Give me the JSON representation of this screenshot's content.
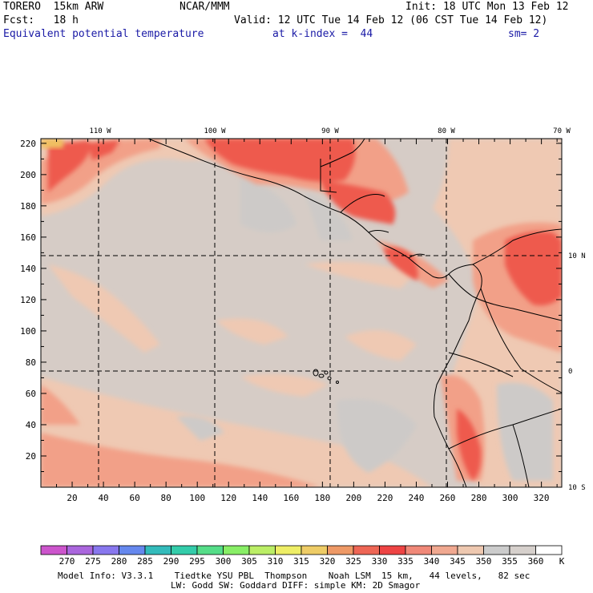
{
  "header": {
    "model": "TORERO  15km ARW",
    "center": "NCAR/MMM",
    "init": "Init: 18 UTC Mon 13 Feb 12",
    "fcst": "Fcst:   18 h",
    "valid": "Valid: 12 UTC Tue 14 Feb 12 (06 CST Tue 14 Feb 12)",
    "field": "Equivalent potential temperature",
    "level": "at k-index =  44",
    "smooth": "sm= 2"
  },
  "map": {
    "x_ticks": [
      "20",
      "40",
      "60",
      "80",
      "100",
      "120",
      "140",
      "160",
      "180",
      "200",
      "220",
      "240",
      "260",
      "280",
      "300",
      "320"
    ],
    "y_ticks": [
      "20",
      "40",
      "60",
      "80",
      "100",
      "120",
      "140",
      "160",
      "180",
      "200",
      "220"
    ],
    "lon_labels": [
      "110 W",
      "100 W",
      "90 W",
      "80 W",
      "70 W"
    ],
    "lat_labels": [
      "10 N",
      "0",
      "10 S"
    ]
  },
  "colorbar": {
    "values": [
      "270",
      "275",
      "280",
      "285",
      "290",
      "295",
      "300",
      "305",
      "310",
      "315",
      "320",
      "325",
      "330",
      "335",
      "340",
      "345",
      "350",
      "355",
      "360"
    ],
    "unit": "K",
    "colors": [
      "#cc55cc",
      "#aa66dd",
      "#8877ee",
      "#6688ee",
      "#33bbbb",
      "#33ccaa",
      "#55dd88",
      "#88ee66",
      "#bbee66",
      "#eeee66",
      "#eecc66",
      "#ee9966",
      "#ee6655",
      "#ee4444",
      "#f08878",
      "#f0a890",
      "#eec8b0",
      "#cccccc",
      "#d6d0cc",
      "#ffffff"
    ]
  },
  "footer": {
    "line1": "Model Info: V3.3.1    Tiedtke YSU PBL  Thompson    Noah LSM  15 km,   44 levels,   82 sec",
    "line2": "LW: Godd SW: Goddard DIFF: simple KM: 2D Smagor"
  }
}
